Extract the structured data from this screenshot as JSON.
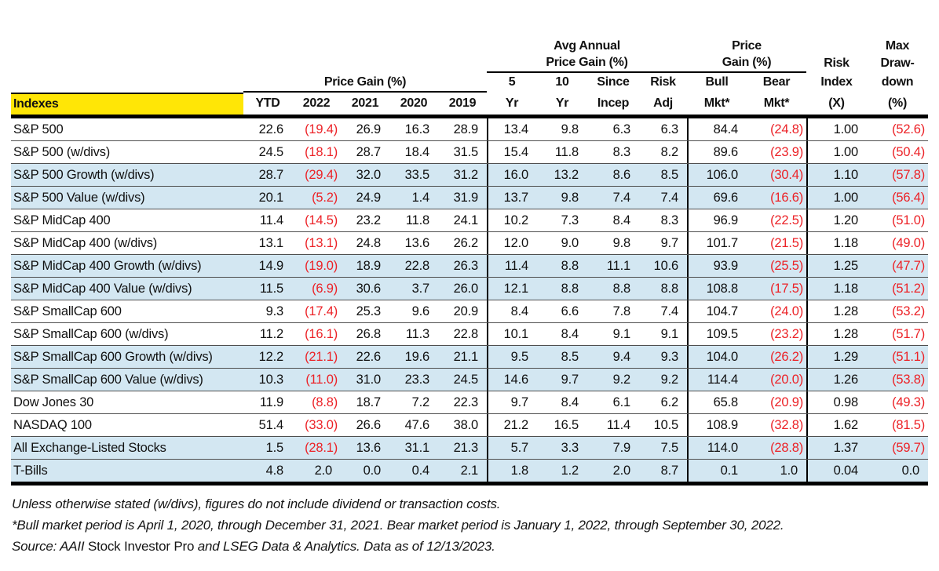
{
  "colors": {
    "highlight_yellow": "#ffe606",
    "row_band_blue": "#d3e7f2",
    "negative_red": "#ec2227"
  },
  "header": {
    "indexes": "Indexes",
    "price_gain_group": "Price Gain (%)",
    "avg_annual_group": [
      "Avg Annual",
      "Price Gain (%)"
    ],
    "bull_bear_group": [
      "Price",
      "Gain (%)"
    ],
    "year_cols": [
      "YTD",
      "2022",
      "2021",
      "2020",
      "2019"
    ],
    "avg_cols_top": [
      "5",
      "10",
      "Since",
      "Risk"
    ],
    "avg_cols_bottom": [
      "Yr",
      "Yr",
      "Incep",
      "Adj"
    ],
    "mkt_cols_top": [
      "Bull",
      "Bear"
    ],
    "mkt_cols_bottom": [
      "Mkt*",
      "Mkt*"
    ],
    "risk_index_col": [
      "Risk",
      "Index",
      "(X)"
    ],
    "max_drawdown_col": [
      "Max",
      "Draw-",
      "down",
      "(%)"
    ]
  },
  "rows": [
    {
      "name": "S&P 500",
      "values": [
        "22.6",
        "(19.4)",
        "26.9",
        "16.3",
        "28.9",
        "13.4",
        "9.8",
        "6.3",
        "6.3",
        "84.4",
        "(24.8)",
        "1.00",
        "(52.6)"
      ]
    },
    {
      "name": "S&P 500 (w/divs)",
      "values": [
        "24.5",
        "(18.1)",
        "28.7",
        "18.4",
        "31.5",
        "15.4",
        "11.8",
        "8.3",
        "8.2",
        "89.6",
        "(23.9)",
        "1.00",
        "(50.4)"
      ]
    },
    {
      "name": "S&P 500 Growth (w/divs)",
      "values": [
        "28.7",
        "(29.4)",
        "32.0",
        "33.5",
        "31.2",
        "16.0",
        "13.2",
        "8.6",
        "8.5",
        "106.0",
        "(30.4)",
        "1.10",
        "(57.8)"
      ]
    },
    {
      "name": "S&P 500 Value (w/divs)",
      "values": [
        "20.1",
        "(5.2)",
        "24.9",
        "1.4",
        "31.9",
        "13.7",
        "9.8",
        "7.4",
        "7.4",
        "69.6",
        "(16.6)",
        "1.00",
        "(56.4)"
      ]
    },
    {
      "name": "S&P MidCap 400",
      "values": [
        "11.4",
        "(14.5)",
        "23.2",
        "11.8",
        "24.1",
        "10.2",
        "7.3",
        "8.4",
        "8.3",
        "96.9",
        "(22.5)",
        "1.20",
        "(51.0)"
      ]
    },
    {
      "name": "S&P MidCap 400 (w/divs)",
      "values": [
        "13.1",
        "(13.1)",
        "24.8",
        "13.6",
        "26.2",
        "12.0",
        "9.0",
        "9.8",
        "9.7",
        "101.7",
        "(21.5)",
        "1.18",
        "(49.0)"
      ]
    },
    {
      "name": "S&P MidCap 400 Growth (w/divs)",
      "values": [
        "14.9",
        "(19.0)",
        "18.9",
        "22.8",
        "26.3",
        "11.4",
        "8.8",
        "11.1",
        "10.6",
        "93.9",
        "(25.5)",
        "1.25",
        "(47.7)"
      ]
    },
    {
      "name": "S&P MidCap 400 Value (w/divs)",
      "values": [
        "11.5",
        "(6.9)",
        "30.6",
        "3.7",
        "26.0",
        "12.1",
        "8.8",
        "8.8",
        "8.8",
        "108.8",
        "(17.5)",
        "1.18",
        "(51.2)"
      ]
    },
    {
      "name": "S&P SmallCap 600",
      "values": [
        "9.3",
        "(17.4)",
        "25.3",
        "9.6",
        "20.9",
        "8.4",
        "6.6",
        "7.8",
        "7.4",
        "104.7",
        "(24.0)",
        "1.28",
        "(53.2)"
      ]
    },
    {
      "name": "S&P SmallCap 600 (w/divs)",
      "values": [
        "11.2",
        "(16.1)",
        "26.8",
        "11.3",
        "22.8",
        "10.1",
        "8.4",
        "9.1",
        "9.1",
        "109.5",
        "(23.2)",
        "1.28",
        "(51.7)"
      ]
    },
    {
      "name": "S&P SmallCap 600 Growth (w/divs)",
      "values": [
        "12.2",
        "(21.1)",
        "22.6",
        "19.6",
        "21.1",
        "9.5",
        "8.5",
        "9.4",
        "9.3",
        "104.0",
        "(26.2)",
        "1.29",
        "(51.1)"
      ]
    },
    {
      "name": "S&P SmallCap 600 Value (w/divs)",
      "values": [
        "10.3",
        "(11.0)",
        "31.0",
        "23.3",
        "24.5",
        "14.6",
        "9.7",
        "9.2",
        "9.2",
        "114.4",
        "(20.0)",
        "1.26",
        "(53.8)"
      ]
    },
    {
      "name": "Dow Jones 30",
      "values": [
        "11.9",
        "(8.8)",
        "18.7",
        "7.2",
        "22.3",
        "9.7",
        "8.4",
        "6.1",
        "6.2",
        "65.8",
        "(20.9)",
        "0.98",
        "(49.3)"
      ]
    },
    {
      "name": "NASDAQ 100",
      "values": [
        "51.4",
        "(33.0)",
        "26.6",
        "47.6",
        "38.0",
        "21.2",
        "16.5",
        "11.4",
        "10.5",
        "108.9",
        "(32.8)",
        "1.62",
        "(81.5)"
      ]
    },
    {
      "name": "All Exchange-Listed Stocks",
      "values": [
        "1.5",
        "(28.1)",
        "13.6",
        "31.1",
        "21.3",
        "5.7",
        "3.3",
        "7.9",
        "7.5",
        "114.0",
        "(28.8)",
        "1.37",
        "(59.7)"
      ]
    },
    {
      "name": "T-Bills",
      "values": [
        "4.8",
        "2.0",
        "0.0",
        "0.4",
        "2.1",
        "1.8",
        "1.2",
        "2.0",
        "8.7",
        "0.1",
        "1.0",
        "0.04",
        "0.0"
      ]
    }
  ],
  "footnotes": {
    "line1": "Unless otherwise stated (w/divs), figures do not include dividend or transaction costs.",
    "line2": "*Bull market period is April 1, 2020, through December 31, 2021. Bear market period is January 1, 2022, through September 30, 2022.",
    "line3": [
      {
        "text": "Source: AAII ",
        "italic": true
      },
      {
        "text": "Stock Investor Pro",
        "italic": false
      },
      {
        "text": " and LSEG Data & Analytics. Data as of 12/13/2023.",
        "italic": true
      }
    ]
  }
}
